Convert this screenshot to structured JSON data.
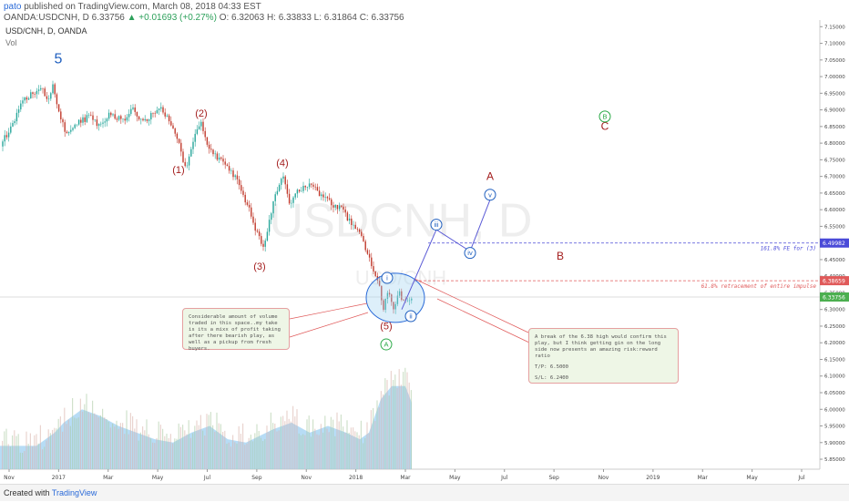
{
  "header": {
    "user": "pato",
    "published": "published on TradingView.com, March 08, 2018 04:33 EST",
    "ohlc": "OANDA:USDCNH, D 6.33756",
    "change": "▲ +0.01693 (+0.27%)",
    "values": "O: 6.32063 H: 6.33833 L: 6.31864 C: 6.33756"
  },
  "legend": {
    "symbol": "USD/CNH, D, OANDA",
    "vol": "Vol"
  },
  "watermark": {
    "main": "USDCNH, D",
    "sub": "USD/CNH"
  },
  "footer": {
    "created": "Created with",
    "brand": "TradingView"
  },
  "annotations": {
    "note_left": "Considerable amount of volume traded in this space..my take is its a mixx of profit taking after there bearish play, as well as a pickup from fresh buyers.",
    "note_right_1": "A break of the 6.38 high would confirm this play, but I think getting gin on the long side now presents an amazing risk:reward ratio",
    "note_right_2": "T/P: 6.5000",
    "note_right_3": "S/L: 6.2400",
    "fib_161": "161.8% FE for (3)",
    "fib_618": "61.8% retracement of entire impulse"
  },
  "colors": {
    "up": "#26a69a",
    "down": "#c0392b",
    "wave": "#a31d1d",
    "count": "#1f5fbf",
    "green": "#27a844",
    "projection": "#5b5bd6",
    "fib_blue": "#4a4ad8",
    "fib_red": "#e05a5a"
  },
  "chart_data": {
    "type": "candlestick",
    "symbol": "OANDA:USDCNH",
    "timeframe": "D",
    "ylim": [
      5.82,
      7.17
    ],
    "y_ticks": [
      "7.15000",
      "7.10000",
      "7.05000",
      "7.00000",
      "6.95000",
      "6.90000",
      "6.85000",
      "6.80000",
      "6.75000",
      "6.70000",
      "6.65000",
      "6.60000",
      "6.55000",
      "6.50000",
      "6.45000",
      "6.40000",
      "6.35000",
      "6.30000",
      "6.25000",
      "6.20000",
      "6.15000",
      "6.10000",
      "6.05000",
      "6.00000",
      "5.95000",
      "5.90000",
      "5.85000"
    ],
    "x_ticks": [
      "Nov",
      "2017",
      "Mar",
      "May",
      "Jul",
      "Sep",
      "Nov",
      "2018",
      "Mar",
      "May",
      "Jul",
      "Sep",
      "Nov",
      "2019",
      "Mar",
      "May",
      "Jul"
    ],
    "price_labels": [
      {
        "value": 6.49982,
        "text": "6.49982",
        "color": "#4a4ad8"
      },
      {
        "value": 6.38659,
        "text": "6.38659",
        "color": "#e05a5a"
      },
      {
        "value": 6.33756,
        "text": "6.33756",
        "color": "#4caf50"
      }
    ],
    "price_path": [
      [
        0,
        6.79
      ],
      [
        12,
        6.85
      ],
      [
        22,
        6.91
      ],
      [
        34,
        6.95
      ],
      [
        46,
        6.97
      ],
      [
        52,
        6.92
      ],
      [
        58,
        6.98
      ],
      [
        64,
        6.9
      ],
      [
        74,
        6.82
      ],
      [
        86,
        6.86
      ],
      [
        98,
        6.88
      ],
      [
        110,
        6.85
      ],
      [
        122,
        6.89
      ],
      [
        134,
        6.87
      ],
      [
        146,
        6.9
      ],
      [
        158,
        6.86
      ],
      [
        168,
        6.89
      ],
      [
        178,
        6.9
      ],
      [
        188,
        6.86
      ],
      [
        196,
        6.8
      ],
      [
        204,
        6.72
      ],
      [
        212,
        6.8
      ],
      [
        220,
        6.87
      ],
      [
        228,
        6.79
      ],
      [
        238,
        6.76
      ],
      [
        248,
        6.73
      ],
      [
        258,
        6.7
      ],
      [
        266,
        6.65
      ],
      [
        274,
        6.6
      ],
      [
        282,
        6.53
      ],
      [
        290,
        6.48
      ],
      [
        296,
        6.58
      ],
      [
        304,
        6.66
      ],
      [
        310,
        6.7
      ],
      [
        318,
        6.62
      ],
      [
        328,
        6.66
      ],
      [
        340,
        6.68
      ],
      [
        352,
        6.64
      ],
      [
        362,
        6.62
      ],
      [
        372,
        6.61
      ],
      [
        380,
        6.58
      ],
      [
        388,
        6.55
      ],
      [
        396,
        6.53
      ],
      [
        404,
        6.46
      ],
      [
        410,
        6.41
      ],
      [
        416,
        6.38
      ],
      [
        421,
        6.3
      ],
      [
        426,
        6.36
      ],
      [
        432,
        6.31
      ],
      [
        438,
        6.35
      ],
      [
        444,
        6.32
      ],
      [
        452,
        6.34
      ]
    ],
    "volume_envelope": [
      [
        0,
        5.89
      ],
      [
        40,
        5.89
      ],
      [
        60,
        5.93
      ],
      [
        70,
        5.96
      ],
      [
        90,
        6.0
      ],
      [
        110,
        5.98
      ],
      [
        130,
        5.95
      ],
      [
        150,
        5.93
      ],
      [
        170,
        5.91
      ],
      [
        190,
        5.9
      ],
      [
        210,
        5.93
      ],
      [
        230,
        5.95
      ],
      [
        250,
        5.91
      ],
      [
        270,
        5.9
      ],
      [
        300,
        5.94
      ],
      [
        320,
        5.96
      ],
      [
        340,
        5.93
      ],
      [
        360,
        5.95
      ],
      [
        380,
        5.93
      ],
      [
        395,
        5.91
      ],
      [
        405,
        5.93
      ],
      [
        418,
        6.03
      ],
      [
        430,
        6.07
      ],
      [
        445,
        6.07
      ],
      [
        452,
        6.02
      ]
    ],
    "wave_labels": [
      {
        "text": "5",
        "x": 64,
        "y": 7.04,
        "color": "#1f5fbf",
        "size": 16
      },
      {
        "text": "(2)",
        "x": 221,
        "y": 6.88,
        "color": "#a31d1d",
        "size": 11
      },
      {
        "text": "(1)",
        "x": 196,
        "y": 6.71,
        "color": "#a31d1d",
        "size": 11
      },
      {
        "text": "(4)",
        "x": 310,
        "y": 6.73,
        "color": "#a31d1d",
        "size": 11
      },
      {
        "text": "(3)",
        "x": 285,
        "y": 6.42,
        "color": "#a31d1d",
        "size": 11
      },
      {
        "text": "(5)",
        "x": 424,
        "y": 6.24,
        "color": "#a31d1d",
        "size": 11
      },
      {
        "text": "A",
        "x": 538,
        "y": 6.69,
        "color": "#a31d1d",
        "size": 12
      },
      {
        "text": "B",
        "x": 615,
        "y": 6.45,
        "color": "#a31d1d",
        "size": 12
      },
      {
        "text": "C",
        "x": 664,
        "y": 6.84,
        "color": "#a31d1d",
        "size": 12
      }
    ],
    "circle_labels": [
      {
        "text": "i",
        "x": 425,
        "y": 6.395,
        "color": "#1f5fbf"
      },
      {
        "text": "ii",
        "x": 451,
        "y": 6.28,
        "color": "#1f5fbf"
      },
      {
        "text": "iii",
        "x": 479,
        "y": 6.555,
        "color": "#1f5fbf"
      },
      {
        "text": "iv",
        "x": 516,
        "y": 6.47,
        "color": "#1f5fbf"
      },
      {
        "text": "v",
        "x": 538,
        "y": 6.645,
        "color": "#1f5fbf"
      },
      {
        "text": "A",
        "x": 424,
        "y": 6.195,
        "color": "#27a844"
      },
      {
        "text": "B",
        "x": 664,
        "y": 6.88,
        "color": "#27a844"
      }
    ],
    "projection": [
      [
        441,
        6.3
      ],
      [
        479,
        6.54
      ],
      [
        516,
        6.475
      ],
      [
        538,
        6.63
      ]
    ],
    "fib_lines": [
      {
        "value": 6.49982,
        "text": "161.8% FE for (3)",
        "color": "#4a4ad8",
        "x0": 470
      },
      {
        "value": 6.38659,
        "text": "61.8% retracement of entire impulse",
        "color": "#e05a5a",
        "x0": 455
      }
    ],
    "current_price": 6.33756
  }
}
